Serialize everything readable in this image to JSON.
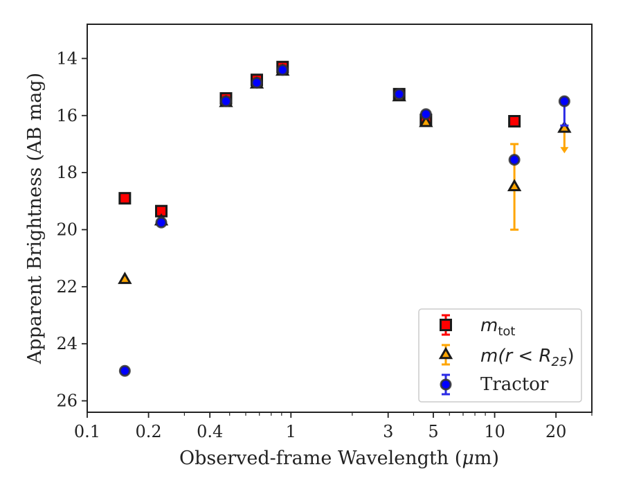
{
  "chart_data": {
    "type": "scatter",
    "xlabel_pre": "Observed-frame Wavelength (",
    "xlabel_mu": "μ",
    "xlabel_post": "m)",
    "ylabel": "Apparent Brightness (AB mag)",
    "xscale": "log",
    "xlim": [
      0.1,
      30
    ],
    "ylim": [
      26.4,
      12.8
    ],
    "y_inverted": true,
    "xticks": [
      {
        "value": 0.1,
        "label": "0.1"
      },
      {
        "value": 0.2,
        "label": "0.2"
      },
      {
        "value": 0.4,
        "label": "0.4"
      },
      {
        "value": 1,
        "label": "1"
      },
      {
        "value": 3,
        "label": "3"
      },
      {
        "value": 5,
        "label": "5"
      },
      {
        "value": 10,
        "label": "10"
      },
      {
        "value": 20,
        "label": "20"
      }
    ],
    "xticks_minor": [
      0.3,
      0.5,
      0.6,
      0.7,
      0.8,
      0.9,
      2,
      4,
      6,
      7,
      8,
      9,
      30
    ],
    "yticks": [
      {
        "value": 14,
        "label": "14"
      },
      {
        "value": 16,
        "label": "16"
      },
      {
        "value": 18,
        "label": "18"
      },
      {
        "value": 20,
        "label": "20"
      },
      {
        "value": 22,
        "label": "22"
      },
      {
        "value": 24,
        "label": "24"
      },
      {
        "value": 26,
        "label": "26"
      }
    ],
    "legend_placement": "lower-right",
    "series": [
      {
        "name_base": "m",
        "name_sub": "tot",
        "marker": "square",
        "color": "#ff0000",
        "errcolor": "#ff0000",
        "points": [
          {
            "x": 0.153,
            "y": 18.9
          },
          {
            "x": 0.231,
            "y": 19.35
          },
          {
            "x": 0.48,
            "y": 15.4
          },
          {
            "x": 0.68,
            "y": 14.75
          },
          {
            "x": 0.91,
            "y": 14.3
          },
          {
            "x": 3.4,
            "y": 15.25
          },
          {
            "x": 4.6,
            "y": 16.15
          },
          {
            "x": 12.5,
            "y": 16.2
          }
        ]
      },
      {
        "name_base": "m(r < R",
        "name_sub": "25",
        "name_post": ")",
        "marker": "triangle",
        "color": "#ffa500",
        "errcolor": "#ffa500",
        "points": [
          {
            "x": 0.153,
            "y": 21.75
          },
          {
            "x": 0.231,
            "y": 19.7
          },
          {
            "x": 0.48,
            "y": 15.55
          },
          {
            "x": 0.68,
            "y": 14.9
          },
          {
            "x": 0.91,
            "y": 14.45
          },
          {
            "x": 3.4,
            "y": 15.35
          },
          {
            "x": 4.6,
            "y": 16.25
          },
          {
            "x": 12.5,
            "y": 18.5,
            "err": 1.5
          },
          {
            "x": 22,
            "y": 16.45,
            "upper_limit": true
          }
        ]
      },
      {
        "name": "Tractor",
        "marker": "circle",
        "color": "#0000ff",
        "errcolor": "#2a2ae6",
        "points": [
          {
            "x": 0.153,
            "y": 24.95
          },
          {
            "x": 0.231,
            "y": 19.75
          },
          {
            "x": 0.48,
            "y": 15.5
          },
          {
            "x": 0.68,
            "y": 14.85
          },
          {
            "x": 0.91,
            "y": 14.4
          },
          {
            "x": 3.4,
            "y": 15.25
          },
          {
            "x": 4.6,
            "y": 15.95
          },
          {
            "x": 12.5,
            "y": 17.55
          },
          {
            "x": 22,
            "y": 15.5,
            "err_low": 0.85
          }
        ]
      }
    ]
  }
}
